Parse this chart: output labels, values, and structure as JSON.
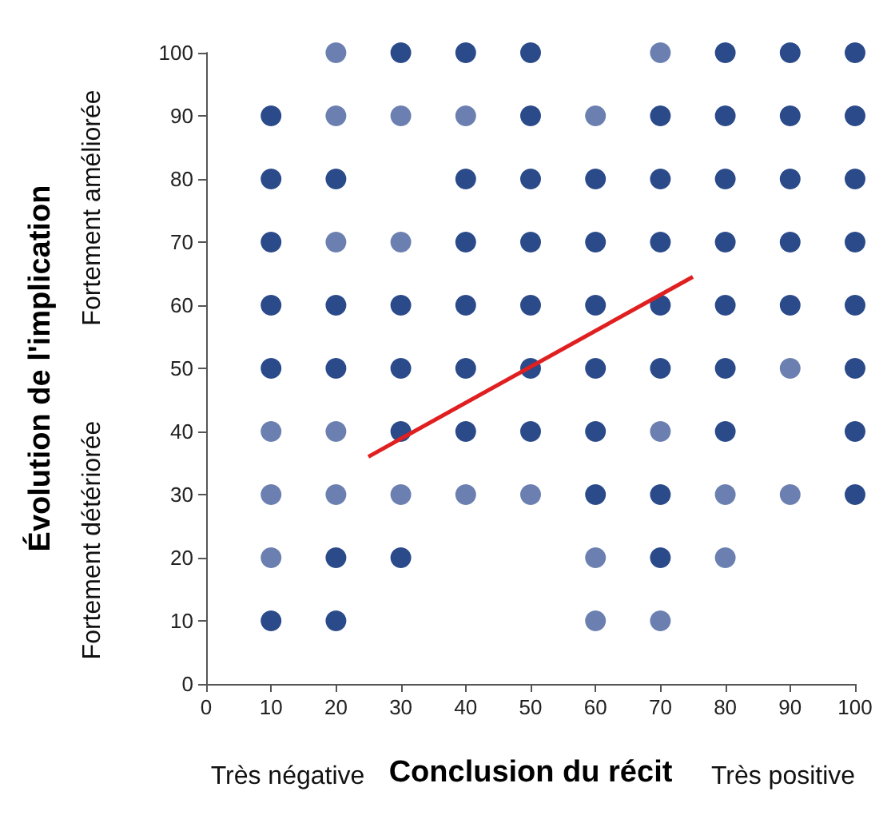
{
  "chart_data": {
    "type": "scatter",
    "xlabel": "Conclusion du récit",
    "ylabel": "Évolution de l'implication",
    "annotations": [
      "Très négative",
      "Très positive",
      "Fortement détériorée",
      "Fortement améliorée"
    ],
    "xlim": [
      0,
      100
    ],
    "xticks": [
      0,
      10,
      20,
      30,
      40,
      50,
      60,
      70,
      80,
      90,
      100
    ],
    "ylim": [
      0,
      100
    ],
    "yticks": [
      0,
      10,
      20,
      30,
      40,
      50,
      60,
      70,
      80,
      90,
      100
    ],
    "grid": false,
    "marker": "circle",
    "series": [
      {
        "color": "#2b4a8a",
        "x": [
          30,
          40,
          50,
          80,
          90,
          100,
          10,
          50,
          70,
          80,
          90,
          100,
          10,
          20,
          40,
          50,
          60,
          70,
          80,
          90,
          100,
          10,
          40,
          50,
          60,
          70,
          80,
          90,
          100,
          10,
          20,
          30,
          40,
          50,
          60,
          70,
          80,
          90,
          100,
          10,
          20,
          30,
          40,
          50,
          60,
          70,
          80,
          100,
          30,
          40,
          50,
          60,
          80,
          100,
          60,
          70,
          100,
          20,
          30,
          70,
          10,
          20
        ],
        "values": [
          100,
          100,
          100,
          100,
          100,
          100,
          90,
          90,
          90,
          90,
          90,
          90,
          80,
          80,
          80,
          80,
          80,
          80,
          80,
          80,
          80,
          70,
          70,
          70,
          70,
          70,
          70,
          70,
          70,
          60,
          60,
          60,
          60,
          60,
          60,
          60,
          60,
          60,
          60,
          50,
          50,
          50,
          50,
          50,
          50,
          50,
          50,
          50,
          40,
          40,
          40,
          40,
          40,
          40,
          30,
          30,
          30,
          20,
          20,
          20,
          10,
          10
        ]
      },
      {
        "color": "#6b80b0",
        "x": [
          20,
          70,
          20,
          30,
          40,
          60,
          20,
          30,
          90,
          10,
          20,
          70,
          10,
          20,
          30,
          40,
          50,
          80,
          90,
          10,
          60,
          80,
          60,
          70
        ],
        "values": [
          100,
          100,
          90,
          90,
          90,
          90,
          70,
          70,
          50,
          40,
          40,
          40,
          30,
          30,
          30,
          30,
          30,
          30,
          30,
          20,
          20,
          20,
          10,
          10
        ]
      },
      {
        "type": "line",
        "color": "#e02020",
        "marker": "none",
        "x": [
          25,
          75
        ],
        "values": [
          36,
          64.5
        ]
      }
    ]
  }
}
